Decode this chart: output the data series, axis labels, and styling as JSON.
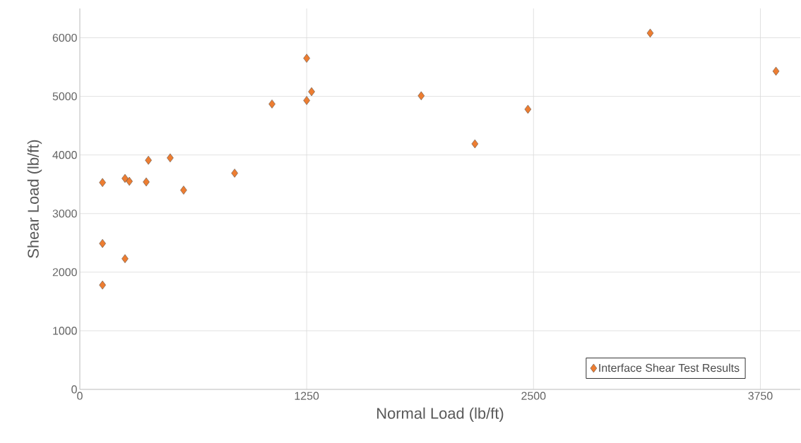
{
  "chart_data": {
    "type": "scatter",
    "xlabel": "Normal Load (lb/ft)",
    "ylabel": "Shear Load (lb/ft)",
    "x": [
      125,
      125,
      125,
      249,
      273,
      249,
      366,
      378,
      498,
      572,
      853,
      1059,
      1250,
      1250,
      1277,
      1881,
      2177,
      2469,
      3143,
      3836
    ],
    "series": [
      {
        "name": "Interface Shear Test Results",
        "color": "#ed7d31",
        "values": [
          3530,
          2490,
          1780,
          3600,
          3550,
          2230,
          3540,
          3910,
          3950,
          3400,
          3690,
          4870,
          5650,
          4930,
          5080,
          5010,
          4190,
          4780,
          6080,
          5430
        ]
      }
    ],
    "xlim": [
      0,
      3970
    ],
    "ylim": [
      0,
      6500
    ],
    "xticks": [
      0,
      1250,
      2500,
      3750
    ],
    "yticks": [
      0,
      1000,
      2000,
      3000,
      4000,
      5000,
      6000
    ],
    "grid": true,
    "legend": "bottom right",
    "marker": "diamond"
  }
}
